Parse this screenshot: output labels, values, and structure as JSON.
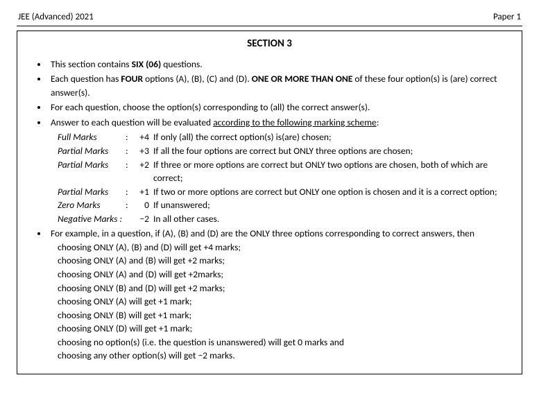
{
  "header": {
    "left": "JEE (Advanced) 2021",
    "right": "Paper 1"
  },
  "section_title": "SECTION 3",
  "bullets": {
    "b1_pre": "This section contains ",
    "b1_bold": "SIX (06)",
    "b1_post": " questions.",
    "b2_pre": "Each question has ",
    "b2_bold1": "FOUR",
    "b2_mid": " options (A), (B), (C) and (D).  ",
    "b2_bold2": "ONE OR MORE THAN ONE",
    "b2_post": " of these four option(s) is (are) correct answer(s).",
    "b3": "For each question, choose the option(s) corresponding to (all) the correct answer(s).",
    "b4_pre": "Answer to each question will be evaluated ",
    "b4_u": "according to the following marking scheme",
    "b4_post": ":"
  },
  "scheme": [
    {
      "label": "Full Marks",
      "mark": "+4",
      "desc": "If only (all) the correct option(s) is(are) chosen;"
    },
    {
      "label": "Partial Marks",
      "mark": "+3",
      "desc": "If all the four options are correct but ONLY three options are chosen;"
    },
    {
      "label": "Partial Marks",
      "mark": "+2",
      "desc": "If three or more options are correct but ONLY two options are chosen, both of which are correct;"
    },
    {
      "label": "Partial Marks",
      "mark": "+1",
      "desc": "If two or more options are correct but ONLY one option is chosen and it is a correct option;"
    },
    {
      "label": "Zero Marks",
      "mark": "0",
      "desc": "If unanswered;"
    },
    {
      "label": "Negative Marks :",
      "mark": "−2",
      "desc": "In all other cases."
    }
  ],
  "example": {
    "lead": "For example, in a question, if (A), (B) and (D) are the ONLY three options corresponding to correct answers, then",
    "lines": [
      "choosing ONLY (A), (B) and (D) will get +4 marks;",
      "choosing ONLY (A) and (B) will get +2 marks;",
      "choosing ONLY (A) and (D) will get +2marks;",
      "choosing ONLY (B) and (D) will get +2 marks;",
      "choosing ONLY (A) will get +1 mark;",
      "choosing ONLY (B) will get +1 mark;",
      "choosing ONLY (D) will get +1 mark;",
      "choosing no option(s) (i.e. the question is unanswered) will get 0 marks and",
      "choosing any other option(s) will get −2  marks."
    ]
  }
}
